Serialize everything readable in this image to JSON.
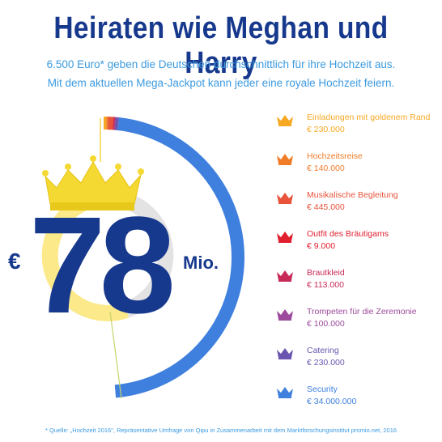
{
  "title": "Heiraten wie Meghan und Harry",
  "subtitle_line1": "6.500 Euro* geben die Deutschen durchschnittlich für ihre Hochzeit aus.",
  "subtitle_line2": "Mit dem aktuellen Mega-Jackpot kann jeder eine royale Hochzeit feiern.",
  "jackpot": {
    "currency": "€",
    "number": "78",
    "unit": "Mio."
  },
  "legend": [
    {
      "label": "Einladungen mit goldenem Rand",
      "value": "€ 230.000",
      "color": "#f7a823",
      "icon": "crown-icon"
    },
    {
      "label": "Hochzeitsreise",
      "value": "€ 140.000",
      "color": "#f07c28",
      "icon": "crown-icon"
    },
    {
      "label": "Musikalische Begleitung",
      "value": "€ 445.000",
      "color": "#e8533a",
      "icon": "crown-icon"
    },
    {
      "label": "Outfit des Bräutigams",
      "value": "€ 9.000",
      "color": "#e0202f",
      "icon": "crown-icon"
    },
    {
      "label": "Brautkleid",
      "value": "€ 113.000",
      "color": "#c72a56",
      "icon": "crown-icon"
    },
    {
      "label": "Trompeten für die Zeremonie",
      "value": "€ 100.000",
      "color": "#9c4a9b",
      "icon": "crown-icon"
    },
    {
      "label": "Catering",
      "value": "€ 230.000",
      "color": "#6a56b0",
      "icon": "crown-icon"
    },
    {
      "label": "Security",
      "value": "€ 34.000.000",
      "color": "#3f80df",
      "icon": "crown-icon"
    }
  ],
  "colors": {
    "title": "#17398d",
    "subtitle": "#3b9ae0",
    "crown": "#f5d933",
    "inner_ring_yellow": "#fbe98a",
    "inner_ring_grey": "#e3e3e3"
  },
  "footnote": "* Quelle: „Hochzeit 2016\", Repräsentative Umfrage von Qipu in Zusammenarbeit mit dem Marktforschungsinstitut promio.net, 2016"
}
